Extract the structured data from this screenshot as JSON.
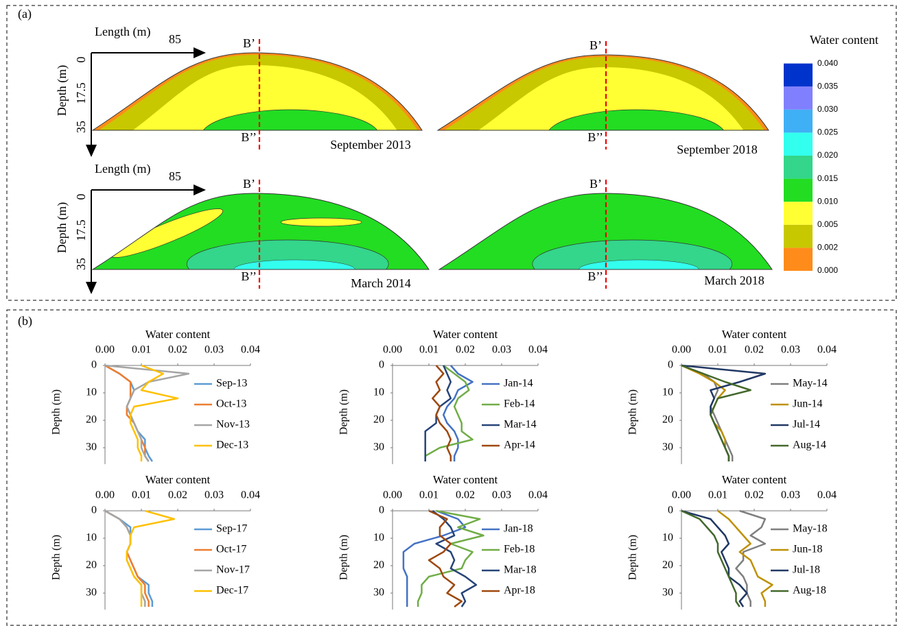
{
  "panel_a": {
    "label": "(a)",
    "axes": [
      {
        "length_label": "Length (m)",
        "length_tick": "85",
        "depth_label": "Depth (m)",
        "depth_ticks": [
          "0",
          "17.5",
          "35"
        ]
      },
      {
        "length_label": "Length (m)",
        "length_tick": "85",
        "depth_label": "Depth (m)",
        "depth_ticks": [
          "0",
          "17.5",
          "35"
        ]
      }
    ],
    "panels": [
      {
        "caption": "September 2013",
        "section_top": "B’",
        "section_bottom": "B’’"
      },
      {
        "caption": "September 2018",
        "section_top": "B’",
        "section_bottom": "B’’"
      },
      {
        "caption": "March 2014",
        "section_top": "B’",
        "section_bottom": "B’’"
      },
      {
        "caption": "March 2018",
        "section_top": "B’",
        "section_bottom": "B’’"
      }
    ],
    "colorbar": {
      "title": "Water content",
      "ticks": [
        {
          "value": 0,
          "label": "0.000"
        },
        {
          "value": 0.002,
          "label": "0.002"
        },
        {
          "value": 0.005,
          "label": "0.005"
        },
        {
          "value": 0.01,
          "label": "0.010"
        },
        {
          "value": 0.015,
          "label": "0.015"
        },
        {
          "value": 0.02,
          "label": "0.020"
        },
        {
          "value": 0.025,
          "label": "0.025"
        },
        {
          "value": 0.03,
          "label": "0.030"
        },
        {
          "value": 0.035,
          "label": "0.035"
        },
        {
          "value": 0.04,
          "label": "0.040"
        }
      ],
      "colors": [
        "#ff8c1a",
        "#c8c800",
        "#ffff33",
        "#22dd22",
        "#33d68a",
        "#33ffee",
        "#3fb0f5",
        "#8080ff",
        "#0033cc"
      ]
    }
  },
  "panel_b_label": "(b)",
  "chart_data": [
    {
      "type": "line",
      "title": "Water content",
      "y_label": "Depth (m)",
      "y": [
        0,
        3,
        6,
        9,
        12,
        15,
        18,
        21,
        24,
        27,
        30,
        33,
        35
      ],
      "xlim": [
        0,
        0.04
      ],
      "xticks": [
        {
          "value": 0,
          "label": "0.00"
        },
        {
          "value": 0.01,
          "label": "0.01"
        },
        {
          "value": 0.02,
          "label": "0.02"
        },
        {
          "value": 0.03,
          "label": "0.03"
        },
        {
          "value": 0.04,
          "label": "0.04"
        }
      ],
      "ylim": [
        0,
        36
      ],
      "yticks": [
        0,
        10,
        20,
        30
      ],
      "y_inverted": true,
      "series": [
        {
          "name": "Sep-13",
          "color": "#5b9bd5",
          "values": [
            0.0,
            0.004,
            0.007,
            0.008,
            0.007,
            0.006,
            0.007,
            0.008,
            0.009,
            0.011,
            0.011,
            0.012,
            0.013
          ]
        },
        {
          "name": "Oct-13",
          "color": "#ed7d31",
          "values": [
            0.0,
            0.004,
            0.007,
            0.007,
            0.007,
            0.006,
            0.006,
            0.008,
            0.009,
            0.01,
            0.011,
            0.011,
            0.012
          ]
        },
        {
          "name": "Nov-13",
          "color": "#a5a5a5",
          "values": [
            0.0,
            0.023,
            0.012,
            0.008,
            0.007,
            0.006,
            0.007,
            0.008,
            0.009,
            0.01,
            0.01,
            0.011,
            0.012
          ]
        },
        {
          "name": "Dec-13",
          "color": "#ffc000",
          "values": [
            0.01,
            0.016,
            0.012,
            0.01,
            0.02,
            0.008,
            0.007,
            0.007,
            0.008,
            0.009,
            0.009,
            0.01,
            0.01
          ]
        }
      ]
    },
    {
      "type": "line",
      "title": "Water content",
      "y_label": "Depth (m)",
      "y": [
        0,
        3,
        6,
        9,
        12,
        15,
        18,
        21,
        24,
        27,
        30,
        33,
        35
      ],
      "xlim": [
        0,
        0.04
      ],
      "xticks": [
        {
          "value": 0,
          "label": "0.00"
        },
        {
          "value": 0.01,
          "label": "0.01"
        },
        {
          "value": 0.02,
          "label": "0.02"
        },
        {
          "value": 0.03,
          "label": "0.03"
        },
        {
          "value": 0.04,
          "label": "0.04"
        }
      ],
      "ylim": [
        0,
        36
      ],
      "yticks": [
        0,
        10,
        20,
        30
      ],
      "y_inverted": true,
      "series": [
        {
          "name": "Jan-14",
          "color": "#4472c4",
          "values": [
            0.016,
            0.018,
            0.022,
            0.018,
            0.017,
            0.015,
            0.014,
            0.015,
            0.017,
            0.018,
            0.018,
            0.017,
            0.017
          ]
        },
        {
          "name": "Feb-14",
          "color": "#70ad47",
          "values": [
            0.014,
            0.017,
            0.02,
            0.021,
            0.018,
            0.017,
            0.018,
            0.019,
            0.019,
            0.022,
            0.013,
            0.009,
            0.009
          ]
        },
        {
          "name": "Mar-14",
          "color": "#264478",
          "values": [
            0.014,
            0.015,
            0.016,
            0.015,
            0.016,
            0.013,
            0.012,
            0.012,
            0.009,
            0.009,
            0.009,
            0.009,
            0.009
          ]
        },
        {
          "name": "Apr-14",
          "color": "#9e480e",
          "values": [
            0.012,
            0.014,
            0.012,
            0.013,
            0.011,
            0.013,
            0.012,
            0.013,
            0.015,
            0.016,
            0.015,
            0.016,
            0.016
          ]
        }
      ]
    },
    {
      "type": "line",
      "title": "Water content",
      "y_label": "Depth (m)",
      "y": [
        0,
        3,
        6,
        9,
        12,
        15,
        18,
        21,
        24,
        27,
        30,
        33,
        35
      ],
      "xlim": [
        0,
        0.04
      ],
      "xticks": [
        {
          "value": 0,
          "label": "0.00"
        },
        {
          "value": 0.01,
          "label": "0.01"
        },
        {
          "value": 0.02,
          "label": "0.02"
        },
        {
          "value": 0.03,
          "label": "0.03"
        },
        {
          "value": 0.04,
          "label": "0.04"
        }
      ],
      "ylim": [
        0,
        36
      ],
      "yticks": [
        0,
        10,
        20,
        30
      ],
      "y_inverted": true,
      "series": [
        {
          "name": "May-14",
          "color": "#7f7f7f",
          "values": [
            0.0,
            0.006,
            0.009,
            0.01,
            0.009,
            0.008,
            0.009,
            0.01,
            0.011,
            0.012,
            0.013,
            0.014,
            0.014
          ]
        },
        {
          "name": "Jun-14",
          "color": "#bf9000",
          "values": [
            0.0,
            0.005,
            0.009,
            0.012,
            0.01,
            0.009,
            0.008,
            0.009,
            0.011,
            0.012,
            0.012,
            0.013,
            0.013
          ]
        },
        {
          "name": "Jul-14",
          "color": "#203864",
          "values": [
            0.0,
            0.023,
            0.016,
            0.008,
            0.009,
            0.008,
            0.008,
            0.009,
            0.01,
            0.011,
            0.012,
            0.013,
            0.013
          ]
        },
        {
          "name": "Aug-14",
          "color": "#43682b",
          "values": [
            0.0,
            0.006,
            0.012,
            0.019,
            0.01,
            0.009,
            0.008,
            0.009,
            0.01,
            0.011,
            0.012,
            0.013,
            0.013
          ]
        }
      ]
    },
    {
      "type": "line",
      "title": "Water content",
      "y_label": "Depth (m)",
      "y": [
        0,
        3,
        6,
        9,
        12,
        15,
        18,
        21,
        24,
        27,
        30,
        33,
        35
      ],
      "xlim": [
        0,
        0.04
      ],
      "xticks": [
        {
          "value": 0,
          "label": "0.00"
        },
        {
          "value": 0.01,
          "label": "0.01"
        },
        {
          "value": 0.02,
          "label": "0.02"
        },
        {
          "value": 0.03,
          "label": "0.03"
        },
        {
          "value": 0.04,
          "label": "0.04"
        }
      ],
      "ylim": [
        0,
        36
      ],
      "yticks": [
        0,
        10,
        20,
        30
      ],
      "y_inverted": true,
      "series": [
        {
          "name": "Sep-17",
          "color": "#5b9bd5",
          "values": [
            0.0,
            0.004,
            0.007,
            0.007,
            0.007,
            0.006,
            0.007,
            0.008,
            0.009,
            0.012,
            0.012,
            0.013,
            0.013
          ]
        },
        {
          "name": "Oct-17",
          "color": "#ed7d31",
          "values": [
            0.0,
            0.004,
            0.006,
            0.007,
            0.007,
            0.006,
            0.007,
            0.008,
            0.009,
            0.011,
            0.011,
            0.012,
            0.012
          ]
        },
        {
          "name": "Nov-17",
          "color": "#a5a5a5",
          "values": [
            0.0,
            0.004,
            0.006,
            0.007,
            0.007,
            0.006,
            0.006,
            0.007,
            0.008,
            0.01,
            0.01,
            0.011,
            0.011
          ]
        },
        {
          "name": "Dec-17",
          "color": "#ffc000",
          "values": [
            0.011,
            0.019,
            0.008,
            0.007,
            0.007,
            0.006,
            0.006,
            0.007,
            0.008,
            0.01,
            0.01,
            0.01,
            0.01
          ]
        }
      ]
    },
    {
      "type": "line",
      "title": "Water content",
      "y_label": "Depth (m)",
      "y": [
        0,
        3,
        6,
        9,
        12,
        15,
        18,
        21,
        24,
        27,
        30,
        33,
        35
      ],
      "xlim": [
        0,
        0.04
      ],
      "xticks": [
        {
          "value": 0,
          "label": "0.00"
        },
        {
          "value": 0.01,
          "label": "0.01"
        },
        {
          "value": 0.02,
          "label": "0.02"
        },
        {
          "value": 0.03,
          "label": "0.03"
        },
        {
          "value": 0.04,
          "label": "0.04"
        }
      ],
      "ylim": [
        0,
        36
      ],
      "yticks": [
        0,
        10,
        20,
        30
      ],
      "y_inverted": true,
      "series": [
        {
          "name": "Jan-18",
          "color": "#4472c4",
          "values": [
            0.012,
            0.018,
            0.02,
            0.014,
            0.006,
            0.003,
            0.003,
            0.003,
            0.004,
            0.004,
            0.004,
            0.004,
            0.004
          ]
        },
        {
          "name": "Feb-18",
          "color": "#70ad47",
          "values": [
            0.012,
            0.024,
            0.018,
            0.025,
            0.016,
            0.022,
            0.02,
            0.019,
            0.01,
            0.008,
            0.008,
            0.007,
            0.007
          ]
        },
        {
          "name": "Mar-18",
          "color": "#264478",
          "values": [
            0.011,
            0.014,
            0.016,
            0.017,
            0.012,
            0.016,
            0.017,
            0.016,
            0.02,
            0.023,
            0.019,
            0.02,
            0.019
          ]
        },
        {
          "name": "Apr-18",
          "color": "#9e480e",
          "values": [
            0.01,
            0.015,
            0.013,
            0.013,
            0.016,
            0.014,
            0.01,
            0.013,
            0.014,
            0.017,
            0.015,
            0.019,
            0.017
          ]
        }
      ]
    },
    {
      "type": "line",
      "title": "Water content",
      "y_label": "Depth (m)",
      "y": [
        0,
        3,
        6,
        9,
        12,
        15,
        18,
        21,
        24,
        27,
        30,
        33,
        35
      ],
      "xlim": [
        0,
        0.04
      ],
      "xticks": [
        {
          "value": 0,
          "label": "0.00"
        },
        {
          "value": 0.01,
          "label": "0.01"
        },
        {
          "value": 0.02,
          "label": "0.02"
        },
        {
          "value": 0.03,
          "label": "0.03"
        },
        {
          "value": 0.04,
          "label": "0.04"
        }
      ],
      "ylim": [
        0,
        36
      ],
      "yticks": [
        0,
        10,
        20,
        30
      ],
      "y_inverted": true,
      "series": [
        {
          "name": "May-18",
          "color": "#7f7f7f",
          "values": [
            0.016,
            0.023,
            0.022,
            0.019,
            0.023,
            0.017,
            0.017,
            0.015,
            0.017,
            0.018,
            0.018,
            0.019,
            0.019
          ]
        },
        {
          "name": "Jun-18",
          "color": "#bf9000",
          "values": [
            0.01,
            0.013,
            0.015,
            0.017,
            0.019,
            0.016,
            0.019,
            0.02,
            0.021,
            0.025,
            0.022,
            0.023,
            0.023
          ]
        },
        {
          "name": "Jul-18",
          "color": "#203864",
          "values": [
            0.0,
            0.008,
            0.01,
            0.012,
            0.013,
            0.011,
            0.012,
            0.013,
            0.013,
            0.016,
            0.018,
            0.016,
            0.017
          ]
        },
        {
          "name": "Aug-18",
          "color": "#43682b",
          "values": [
            0.0,
            0.005,
            0.007,
            0.009,
            0.01,
            0.01,
            0.011,
            0.012,
            0.013,
            0.014,
            0.015,
            0.015,
            0.016
          ]
        }
      ]
    }
  ]
}
